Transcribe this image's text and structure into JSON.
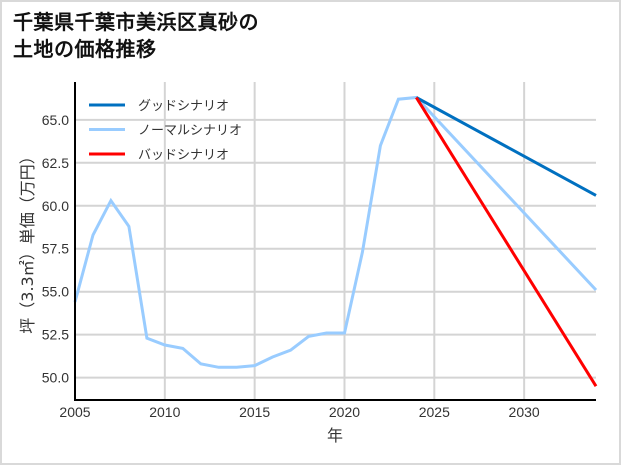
{
  "title": {
    "line1": "千葉県千葉市美浜区真砂の",
    "line2": "土地の価格推移"
  },
  "chart_data": {
    "type": "line",
    "title": "千葉県千葉市美浜区真砂の土地の価格推移",
    "xlabel": "年",
    "ylabel": "坪（3.3㎡）単価（万円）",
    "xlim": [
      2005,
      2034
    ],
    "ylim": [
      48.7,
      67.2
    ],
    "xticks": [
      2005,
      2010,
      2015,
      2020,
      2025,
      2030
    ],
    "xtick_labels": [
      "2005",
      "2010",
      "2015",
      "2020",
      "2025",
      "2030"
    ],
    "yticks": [
      50.0,
      52.5,
      55.0,
      57.5,
      60.0,
      62.5,
      65.0
    ],
    "ytick_labels": [
      "50.0",
      "52.5",
      "55.0",
      "57.5",
      "60.0",
      "62.5",
      "65.0"
    ],
    "grid": true,
    "legend_position": "upper left",
    "series": [
      {
        "name": "グッドシナリオ",
        "color": "#0070C0",
        "x": [
          2024,
          2034
        ],
        "values": [
          66.3,
          60.6
        ]
      },
      {
        "name": "ノーマルシナリオ",
        "color": "#99CCFF",
        "x": [
          2005,
          2006,
          2007,
          2008,
          2009,
          2010,
          2011,
          2012,
          2013,
          2014,
          2015,
          2016,
          2017,
          2018,
          2019,
          2020,
          2021,
          2022,
          2023,
          2024,
          2034
        ],
        "values": [
          54.4,
          58.3,
          60.3,
          58.8,
          52.3,
          51.9,
          51.7,
          50.8,
          50.6,
          50.6,
          50.7,
          51.2,
          51.6,
          52.4,
          52.6,
          52.6,
          57.3,
          63.5,
          66.2,
          66.3,
          55.1
        ]
      },
      {
        "name": "バッドシナリオ",
        "color": "#FF0000",
        "x": [
          2024,
          2034
        ],
        "values": [
          66.3,
          49.5
        ]
      }
    ]
  }
}
